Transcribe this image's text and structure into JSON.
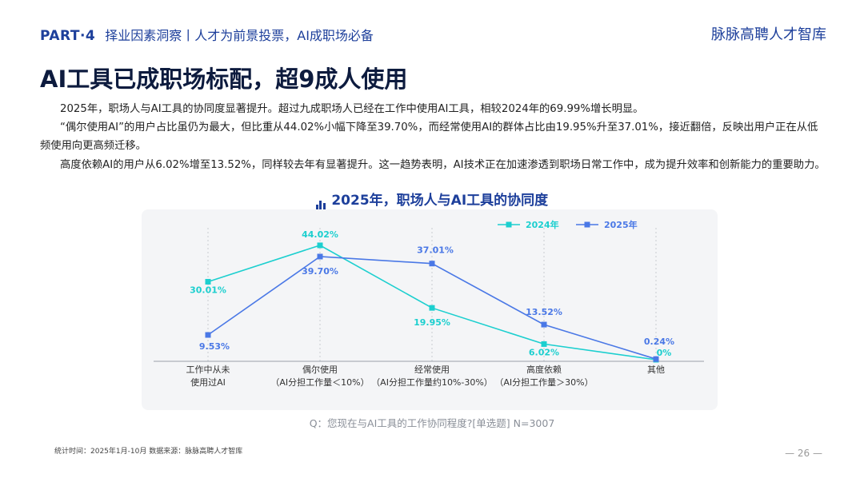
{
  "header": {
    "part": "PART·4",
    "section": "择业因素洞察丨人才为前景投票，AI成职场必备",
    "brand": "脉脉高聘人才智库"
  },
  "title": "AI工具已成职场标配，超9成人使用",
  "paragraphs": [
    "2025年，职场人与AI工具的协同度显著提升。超过九成职场人已经在工作中使用AI工具，相较2024年的69.99%增长明显。",
    "“偶尔使用AI”的用户占比虽仍为最大，但比重从44.02%小幅下降至39.70%，而经常使用AI的群体占比由19.95%升至37.01%，接近翻倍，反映出用户正在从低频使用向更高频迁移。",
    "高度依赖AI的用户从6.02%增至13.52%，同样较去年有显著提升。这一趋势表明，AI技术正在加速渗透到职场日常工作中，成为提升效率和创新能力的重要助力。"
  ],
  "chart_title": "2025年，职场人与AI工具的协同度",
  "chart_icon": "bar-chart-icon",
  "colors": {
    "brand_blue": "#1d3f9b",
    "series_2024": "#1ccfcf",
    "series_2025": "#4a78e6"
  },
  "chart_data": {
    "type": "line",
    "categories": [
      [
        "工作中从未",
        "使用过AI"
      ],
      [
        "偶尔使用",
        "（AI分担工作量＜10%）"
      ],
      [
        "经常使用",
        "（AI分担工作量约10%-30%）"
      ],
      [
        "高度依赖",
        "（AI分担工作量＞30%）"
      ],
      [
        "其他"
      ]
    ],
    "series": [
      {
        "name": "2024年",
        "values": [
          30.01,
          44.02,
          19.95,
          6.02,
          0
        ],
        "labels": [
          "30.01%",
          "44.02%",
          "19.95%",
          "6.02%",
          "0%"
        ],
        "color": "#1ccfcf"
      },
      {
        "name": "2025年",
        "values": [
          9.53,
          39.7,
          37.01,
          13.52,
          0.24
        ],
        "labels": [
          "9.53%",
          "39.70%",
          "37.01%",
          "13.52%",
          "0.24%"
        ],
        "color": "#4a78e6"
      }
    ],
    "ylim": [
      0,
      48
    ],
    "grid": false,
    "legend": "top-right"
  },
  "question": "Q：您现在与AI工具的工作协同程度?[单选题]  N=3007",
  "footer": {
    "source": "统计时间：2025年1月-10月      数据来源：脉脉高聘人才智库",
    "page": "— 26 —"
  }
}
